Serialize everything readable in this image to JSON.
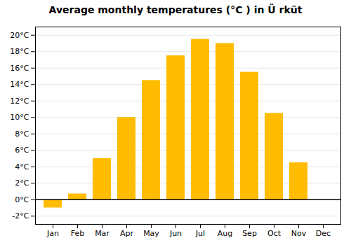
{
  "chart_data": {
    "type": "bar",
    "title": "Average monthly temperatures (°C ) in Ü rküt",
    "categories": [
      "Jan",
      "Feb",
      "Mar",
      "Apr",
      "May",
      "Jun",
      "Jul",
      "Aug",
      "Sep",
      "Oct",
      "Nov",
      "Dec"
    ],
    "values": [
      -1.0,
      0.7,
      5.0,
      10.0,
      14.5,
      17.5,
      19.5,
      19.0,
      15.5,
      10.5,
      4.5,
      0.0
    ],
    "color": "#FFBC00",
    "ylim": [
      -3,
      21
    ],
    "yticks": [
      {
        "value": -2,
        "label": "-2°C"
      },
      {
        "value": 0,
        "label": "0°C"
      },
      {
        "value": 2,
        "label": "2°C"
      },
      {
        "value": 4,
        "label": "4°C"
      },
      {
        "value": 6,
        "label": "6°C"
      },
      {
        "value": 8,
        "label": "8°C"
      },
      {
        "value": 10,
        "label": "10°C"
      },
      {
        "value": 12,
        "label": "12°C"
      },
      {
        "value": 14,
        "label": "14°C"
      },
      {
        "value": 16,
        "label": "16°C"
      },
      {
        "value": 18,
        "label": "18°C"
      },
      {
        "value": 20,
        "label": "20°C"
      }
    ],
    "grid": true
  }
}
